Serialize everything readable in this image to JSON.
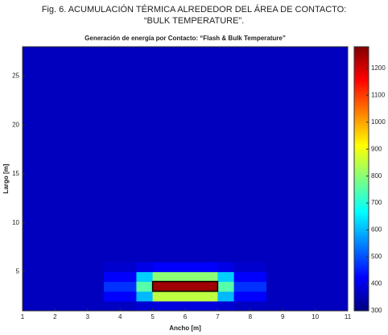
{
  "caption": [
    "Fig. 6.  ACUMULACIÓN TÉRMICA ALREDEDOR DEL ÁREA DE CONTACTO:",
    "“BULK TEMPERATURE”."
  ],
  "chart_data": {
    "type": "heatmap",
    "title": "Generación de energía por Contacto: “Flash & Bulk Temperature”",
    "x_label": "Ancho [m]",
    "y_label": "Largo [m]",
    "x_edges": [
      1,
      3.5,
      4.5,
      5,
      6,
      7,
      7.5,
      8.5,
      11
    ],
    "y_edges": [
      1,
      2,
      3,
      4,
      5,
      6,
      28
    ],
    "values": [
      [
        360,
        365,
        380,
        390,
        390,
        380,
        365,
        360
      ],
      [
        360,
        420,
        600,
        850,
        850,
        600,
        420,
        360
      ],
      [
        360,
        470,
        750,
        1250,
        1250,
        750,
        470,
        360
      ],
      [
        360,
        420,
        620,
        800,
        800,
        620,
        420,
        360
      ],
      [
        360,
        375,
        400,
        420,
        420,
        400,
        375,
        360
      ],
      [
        360,
        360,
        360,
        360,
        360,
        360,
        360,
        360
      ]
    ],
    "xlim": [
      1,
      11
    ],
    "ylim": [
      1,
      28
    ],
    "xticks": [
      1,
      2,
      3,
      4,
      5,
      6,
      7,
      8,
      9,
      10,
      11
    ],
    "yticks": [
      5,
      10,
      15,
      20,
      25
    ],
    "clim": [
      300,
      1280
    ],
    "cticks": [
      300,
      400,
      500,
      600,
      700,
      800,
      900,
      1000,
      1100,
      1200
    ],
    "colormap": "jet"
  }
}
